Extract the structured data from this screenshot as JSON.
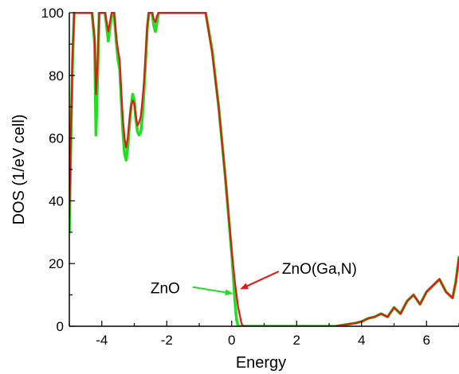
{
  "chart_data": {
    "type": "line",
    "title": "",
    "xlabel": "Energy",
    "ylabel": "DOS (1/eV cell)",
    "xlim": [
      -5,
      7
    ],
    "ylim": [
      0,
      100
    ],
    "xticks": [
      -4,
      -2,
      0,
      2,
      4,
      6
    ],
    "yticks": [
      0,
      20,
      40,
      60,
      80,
      100
    ],
    "grid": false,
    "series": [
      {
        "name": "ZnO",
        "color": "#22dd22",
        "x": [
          -5.0,
          -4.95,
          -4.9,
          -4.85,
          -4.8,
          -4.7,
          -4.3,
          -4.22,
          -4.18,
          -4.14,
          -4.08,
          -4.0,
          -3.9,
          -3.8,
          -3.7,
          -3.62,
          -3.55,
          -3.5,
          -3.45,
          -3.4,
          -3.35,
          -3.3,
          -3.25,
          -3.2,
          -3.15,
          -3.1,
          -3.05,
          -3.0,
          -2.95,
          -2.9,
          -2.85,
          -2.8,
          -2.75,
          -2.7,
          -2.65,
          -2.6,
          -2.55,
          -2.5,
          -2.45,
          -2.4,
          -2.35,
          -2.3,
          -2.25,
          -2.2,
          -2.15,
          -2.1,
          -2.0,
          -1.9,
          -1.8,
          -0.8,
          -0.6,
          -0.4,
          -0.2,
          0.0,
          0.05,
          0.1,
          0.15,
          0.2,
          0.25,
          3.0,
          3.2,
          3.5,
          3.8,
          4.0,
          4.2,
          4.4,
          4.6,
          4.8,
          5.0,
          5.2,
          5.4,
          5.6,
          5.8,
          6.0,
          6.2,
          6.4,
          6.6,
          6.8,
          6.9,
          7.0
        ],
        "values": [
          30,
          60,
          85,
          100,
          100,
          100,
          100,
          90,
          61,
          75,
          100,
          100,
          100,
          91,
          99,
          100,
          90,
          85,
          82,
          72,
          62,
          55,
          53,
          57,
          64,
          70,
          74,
          72,
          66,
          62,
          61,
          62,
          67,
          75,
          85,
          95,
          100,
          100,
          100,
          96,
          94,
          97,
          100,
          100,
          100,
          100,
          100,
          100,
          100,
          100,
          88,
          70,
          48,
          23,
          16,
          8,
          2,
          0,
          0,
          0,
          0,
          0.5,
          1,
          1.5,
          2.5,
          3,
          4,
          3,
          6,
          4,
          8,
          10,
          7,
          11,
          13,
          15,
          11,
          9,
          14,
          22
        ]
      },
      {
        "name": "ZnO(Ga,N)",
        "color": "#e01818",
        "x": [
          -5.0,
          -4.95,
          -4.9,
          -4.85,
          -4.8,
          -4.7,
          -4.3,
          -4.22,
          -4.18,
          -4.14,
          -4.08,
          -4.0,
          -3.9,
          -3.8,
          -3.7,
          -3.62,
          -3.55,
          -3.5,
          -3.45,
          -3.4,
          -3.35,
          -3.3,
          -3.25,
          -3.2,
          -3.15,
          -3.1,
          -3.05,
          -3.0,
          -2.95,
          -2.9,
          -2.85,
          -2.8,
          -2.75,
          -2.7,
          -2.65,
          -2.6,
          -2.55,
          -2.5,
          -2.45,
          -2.4,
          -2.35,
          -2.3,
          -2.25,
          -2.2,
          -2.15,
          -2.1,
          -2.0,
          -1.9,
          -1.8,
          -0.8,
          -0.6,
          -0.4,
          -0.2,
          0.0,
          0.1,
          0.2,
          0.3,
          0.35,
          3.0,
          3.2,
          3.5,
          3.8,
          4.0,
          4.2,
          4.4,
          4.6,
          4.8,
          5.0,
          5.2,
          5.4,
          5.6,
          5.8,
          6.0,
          6.2,
          6.4,
          6.6,
          6.8,
          6.9,
          7.0
        ],
        "values": [
          35,
          62,
          87,
          100,
          100,
          100,
          100,
          92,
          74,
          82,
          100,
          100,
          100,
          94,
          100,
          100,
          92,
          88,
          85,
          75,
          66,
          60,
          57,
          60,
          66,
          70,
          72,
          71,
          67,
          64,
          65,
          67,
          72,
          78,
          87,
          96,
          100,
          100,
          100,
          98,
          97,
          99,
          100,
          100,
          100,
          100,
          100,
          100,
          100,
          100,
          87,
          70,
          48,
          24,
          14,
          6,
          1,
          0,
          0,
          0,
          0.5,
          1,
          1.5,
          2.5,
          3,
          4,
          3,
          6,
          4,
          8,
          10,
          7,
          11,
          13,
          15,
          11,
          9,
          14,
          22
        ]
      }
    ],
    "annotations": [
      {
        "text": "ZnO",
        "color": "#22dd22",
        "text_x": -2.5,
        "text_y": 10.5,
        "arrow_from": [
          -1.2,
          12.5
        ],
        "arrow_to": [
          0.0,
          10.5
        ]
      },
      {
        "text": "ZnO(Ga,N)",
        "color": "#e01818",
        "text_x": 1.55,
        "text_y": 16.8,
        "arrow_from": [
          1.45,
          17.5
        ],
        "arrow_to": [
          0.3,
          12.0
        ]
      }
    ]
  }
}
